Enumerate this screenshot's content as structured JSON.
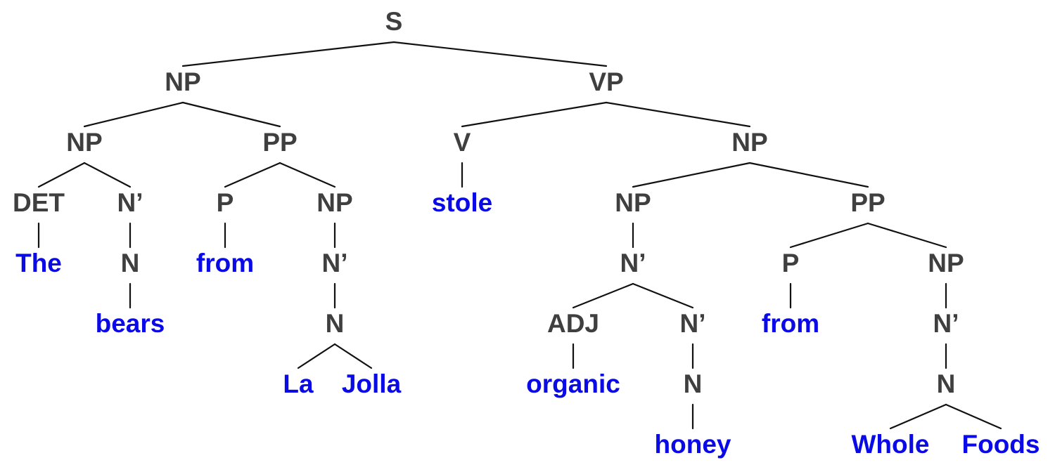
{
  "diagram": {
    "type": "syntax-tree",
    "colors": {
      "category": "#3f3f3f",
      "word": "#0a0ae6",
      "edge": "#111111"
    },
    "nodes": [
      {
        "id": "s",
        "label": "S",
        "kind": "category"
      },
      {
        "id": "np1",
        "label": "NP",
        "kind": "category",
        "parent": "s"
      },
      {
        "id": "vp",
        "label": "VP",
        "kind": "category",
        "parent": "s"
      },
      {
        "id": "np2",
        "label": "NP",
        "kind": "category",
        "parent": "np1"
      },
      {
        "id": "pp1",
        "label": "PP",
        "kind": "category",
        "parent": "np1"
      },
      {
        "id": "det",
        "label": "DET",
        "kind": "category",
        "parent": "np2"
      },
      {
        "id": "nbar1",
        "label": "N’",
        "kind": "category",
        "parent": "np2"
      },
      {
        "id": "w_the",
        "label": "The",
        "kind": "word",
        "parent": "det"
      },
      {
        "id": "n1",
        "label": "N",
        "kind": "category",
        "parent": "nbar1"
      },
      {
        "id": "w_bears",
        "label": "bears",
        "kind": "word",
        "parent": "n1"
      },
      {
        "id": "p1",
        "label": "P",
        "kind": "category",
        "parent": "pp1"
      },
      {
        "id": "np3",
        "label": "NP",
        "kind": "category",
        "parent": "pp1"
      },
      {
        "id": "w_from1",
        "label": "from",
        "kind": "word",
        "parent": "p1"
      },
      {
        "id": "nbar2",
        "label": "N’",
        "kind": "category",
        "parent": "np3"
      },
      {
        "id": "n2",
        "label": "N",
        "kind": "category",
        "parent": "nbar2"
      },
      {
        "id": "w_la",
        "label": "La",
        "kind": "word",
        "parent": "n2"
      },
      {
        "id": "w_jolla",
        "label": "Jolla",
        "kind": "word",
        "parent": "n2"
      },
      {
        "id": "v",
        "label": "V",
        "kind": "category",
        "parent": "vp"
      },
      {
        "id": "np4",
        "label": "NP",
        "kind": "category",
        "parent": "vp"
      },
      {
        "id": "w_stole",
        "label": "stole",
        "kind": "word",
        "parent": "v"
      },
      {
        "id": "np5",
        "label": "NP",
        "kind": "category",
        "parent": "np4"
      },
      {
        "id": "pp2",
        "label": "PP",
        "kind": "category",
        "parent": "np4"
      },
      {
        "id": "nbar3",
        "label": "N’",
        "kind": "category",
        "parent": "np5"
      },
      {
        "id": "adj",
        "label": "ADJ",
        "kind": "category",
        "parent": "nbar3"
      },
      {
        "id": "nbar4",
        "label": "N’",
        "kind": "category",
        "parent": "nbar3"
      },
      {
        "id": "w_organic",
        "label": "organic",
        "kind": "word",
        "parent": "adj"
      },
      {
        "id": "n3",
        "label": "N",
        "kind": "category",
        "parent": "nbar4"
      },
      {
        "id": "w_honey",
        "label": "honey",
        "kind": "word",
        "parent": "n3"
      },
      {
        "id": "p2",
        "label": "P",
        "kind": "category",
        "parent": "pp2"
      },
      {
        "id": "np6",
        "label": "NP",
        "kind": "category",
        "parent": "pp2"
      },
      {
        "id": "w_from2",
        "label": "from",
        "kind": "word",
        "parent": "p2"
      },
      {
        "id": "nbar5",
        "label": "N’",
        "kind": "category",
        "parent": "np6"
      },
      {
        "id": "n4",
        "label": "N",
        "kind": "category",
        "parent": "nbar5"
      },
      {
        "id": "w_whole",
        "label": "Whole",
        "kind": "word",
        "parent": "n4"
      },
      {
        "id": "w_foods",
        "label": "Foods",
        "kind": "word",
        "parent": "n4"
      }
    ]
  }
}
